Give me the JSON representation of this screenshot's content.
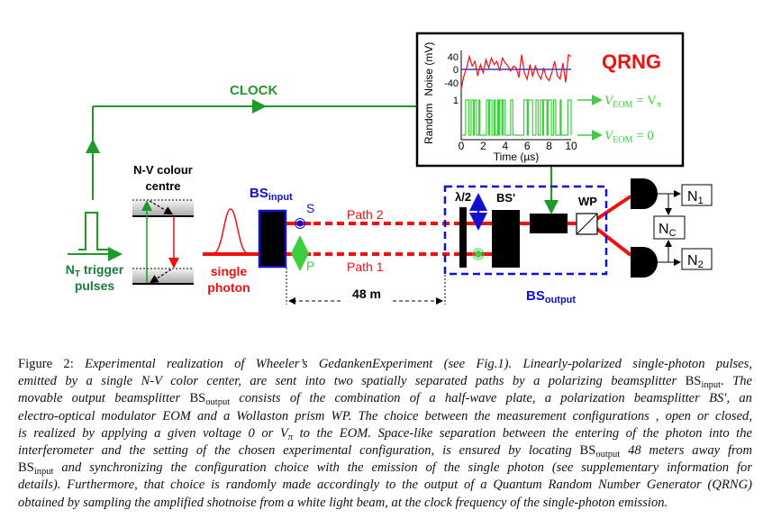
{
  "figure": {
    "clock_label": "CLOCK",
    "trigger_label": {
      "n": "N",
      "sub": "T",
      "rest": " trigger",
      "line2": "pulses"
    },
    "nv_label": [
      "N-V colour",
      "centre"
    ],
    "photon_label": [
      "single",
      "photon"
    ],
    "bs_input": {
      "main": "BS",
      "sub": "input"
    },
    "pol_s": "S",
    "pol_p": "P",
    "path2": "Path 2",
    "path1": "Path 1",
    "distance": "48 m",
    "half_wave": "λ/2",
    "bs_prime": "BS'",
    "wp": "WP",
    "bs_output": {
      "main": "BS",
      "sub": "output"
    },
    "detectors": {
      "n1": "N",
      "n1_sub": "1",
      "n2": "N",
      "n2_sub": "2",
      "nc": "N",
      "nc_sub": "C"
    },
    "qrng": {
      "title": "QRNG",
      "ylabel_top": "Noise (mV)",
      "ylabel_bottom": "Random",
      "noise_ticks": [
        "40",
        "0",
        "-40"
      ],
      "random_ticks": [
        "1"
      ],
      "x_ticks": [
        "0",
        "2",
        "4",
        "6",
        "8",
        "10"
      ],
      "xlabel": "Time (µs)",
      "state_high": {
        "v": "V",
        "sub": "EOM",
        "eq": " = V",
        "eqsub": "π"
      },
      "state_low": {
        "v": "V",
        "sub": "EOM",
        "eq": " = 0"
      }
    },
    "colors": {
      "green": "#1f9a2a",
      "bright_green": "#3ecf3e",
      "red": "#f01010",
      "blue": "#1010d0",
      "dark_green": "#1c7a3c"
    }
  },
  "chart_data": {
    "type": "line",
    "xlabel": "Time (µs)",
    "xlim": [
      0,
      10
    ],
    "series": [
      {
        "name": "Noise (mV)",
        "ylim": [
          -50,
          50
        ],
        "x": [
          0,
          0.25,
          0.5,
          0.75,
          1,
          1.25,
          1.5,
          1.75,
          2,
          2.25,
          2.5,
          2.75,
          3,
          3.25,
          3.5,
          3.75,
          4,
          4.25,
          4.5,
          4.75,
          5,
          5.25,
          5.5,
          5.75,
          6,
          6.25,
          6.5,
          6.75,
          7,
          7.25,
          7.5,
          7.75,
          8,
          8.25,
          8.5,
          8.75,
          9,
          9.25,
          9.5,
          9.75,
          10
        ],
        "y": [
          -60,
          -20,
          5,
          40,
          10,
          25,
          -20,
          15,
          -10,
          30,
          5,
          35,
          15,
          25,
          -5,
          35,
          20,
          10,
          -5,
          10,
          5,
          -25,
          45,
          -10,
          -30,
          15,
          -20,
          10,
          -15,
          -30,
          5,
          -25,
          -35,
          -10,
          25,
          -20,
          -30,
          20,
          -40,
          45,
          40
        ]
      },
      {
        "name": "Random",
        "ylim": [
          0,
          1
        ],
        "high_intervals": [
          [
            0.4,
            0.7
          ],
          [
            0.9,
            1.1
          ],
          [
            1.2,
            1.4
          ],
          [
            1.6,
            1.7
          ],
          [
            2.3,
            2.5
          ],
          [
            2.6,
            2.8
          ],
          [
            3.0,
            3.1
          ],
          [
            3.3,
            3.4
          ],
          [
            3.5,
            3.7
          ],
          [
            3.8,
            4.0
          ],
          [
            4.5,
            4.7
          ],
          [
            5.7,
            6.0
          ],
          [
            6.1,
            6.5
          ],
          [
            6.8,
            7.0
          ],
          [
            7.2,
            7.4
          ],
          [
            7.5,
            7.8
          ],
          [
            7.9,
            8.2
          ],
          [
            8.4,
            8.6
          ],
          [
            9.0,
            9.1
          ],
          [
            9.7,
            10.0
          ]
        ]
      }
    ]
  },
  "caption": [
    [
      {
        "t": "Figure 2: ",
        "s": "r"
      },
      {
        "t": "Experimental realization of Wheeler’s GedankenExperiment (see Fig.1).  Linearly-polarized single-photon pulses,",
        "s": "i"
      }
    ],
    [
      {
        "t": "emitted by a single N-V color center, are sent into two spatially separated paths by a polarizing beamsplitter ",
        "s": "i"
      },
      {
        "t": "BS",
        "s": "r"
      },
      {
        "t": "input",
        "s": "sub"
      },
      {
        "t": ".",
        "s": "r"
      },
      {
        "t": "  The",
        "s": "i"
      }
    ],
    [
      {
        "t": "movable output beamsplitter ",
        "s": "i"
      },
      {
        "t": "BS",
        "s": "r"
      },
      {
        "t": "output",
        "s": "sub"
      },
      {
        "t": " consists of the combination of a half-wave plate, a polarization beamsplitter BS′, an",
        "s": "i"
      }
    ],
    [
      {
        "t": "electro-optical modulator EOM and a Wollaston prism WP. The choice between the measurement configurations , open or closed,",
        "s": "i"
      }
    ],
    [
      {
        "t": "is realized by applying a given voltage 0 or V",
        "s": "i"
      },
      {
        "t": "π",
        "s": "isub"
      },
      {
        "t": " to the EOM. Space-like separation between the entering of the photon into the",
        "s": "i"
      }
    ],
    [
      {
        "t": "interferometer and the setting of the chosen experimental configuration, is ensured by locating ",
        "s": "i"
      },
      {
        "t": "BS",
        "s": "r"
      },
      {
        "t": "output",
        "s": "sub"
      },
      {
        "t": " 48 meters away from",
        "s": "i"
      }
    ],
    [
      {
        "t": "BS",
        "s": "r"
      },
      {
        "t": "input",
        "s": "sub"
      },
      {
        "t": " and synchronizing the configuration choice with the emission of the single photon (see supplementary information for",
        "s": "i"
      }
    ],
    [
      {
        "t": "details). Furthermore, that choice is randomly made accordingly to the output of a Quantum Random Number Generator (QRNG)",
        "s": "i"
      }
    ],
    [
      {
        "t": "obtained by sampling the amplified shotnoise from a white light beam, at the clock frequency of the single-photon emission.",
        "s": "i"
      }
    ]
  ]
}
